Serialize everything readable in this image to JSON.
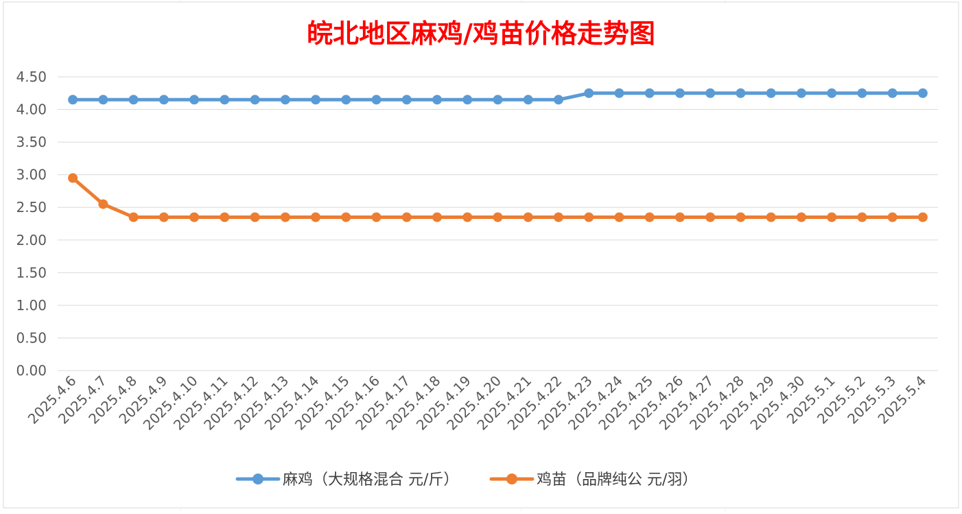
{
  "chart_data": {
    "type": "line",
    "title": "皖北地区麻鸡/鸡苗价格走势图",
    "title_color": "#ff0000",
    "xlabel": "",
    "ylabel": "",
    "ylim": [
      0,
      4.5
    ],
    "yticks": [
      "0.00",
      "0.50",
      "1.00",
      "1.50",
      "2.00",
      "2.50",
      "3.00",
      "3.50",
      "4.00",
      "4.50"
    ],
    "grid": true,
    "legend_position": "bottom",
    "categories": [
      "2025.4.6",
      "2025.4.7",
      "2025.4.8",
      "2025.4.9",
      "2025.4.10",
      "2025.4.11",
      "2025.4.12",
      "2025.4.13",
      "2025.4.14",
      "2025.4.15",
      "2025.4.16",
      "2025.4.17",
      "2025.4.18",
      "2025.4.19",
      "2025.4.20",
      "2025.4.21",
      "2025.4.22",
      "2025.4.23",
      "2025.4.24",
      "2025.4.25",
      "2025.4.26",
      "2025.4.27",
      "2025.4.28",
      "2025.4.29",
      "2025.4.30",
      "2025.5.1",
      "2025.5.2",
      "2025.5.3",
      "2025.5.4"
    ],
    "series": [
      {
        "name": "麻鸡（大规格混合 元/斤）",
        "color": "#5b9bd5",
        "values": [
          4.15,
          4.15,
          4.15,
          4.15,
          4.15,
          4.15,
          4.15,
          4.15,
          4.15,
          4.15,
          4.15,
          4.15,
          4.15,
          4.15,
          4.15,
          4.15,
          4.15,
          4.25,
          4.25,
          4.25,
          4.25,
          4.25,
          4.25,
          4.25,
          4.25,
          4.25,
          4.25,
          4.25,
          4.25
        ]
      },
      {
        "name": "鸡苗（品牌纯公 元/羽）",
        "color": "#ed7d31",
        "values": [
          2.95,
          2.55,
          2.35,
          2.35,
          2.35,
          2.35,
          2.35,
          2.35,
          2.35,
          2.35,
          2.35,
          2.35,
          2.35,
          2.35,
          2.35,
          2.35,
          2.35,
          2.35,
          2.35,
          2.35,
          2.35,
          2.35,
          2.35,
          2.35,
          2.35,
          2.35,
          2.35,
          2.35,
          2.35
        ]
      }
    ]
  }
}
